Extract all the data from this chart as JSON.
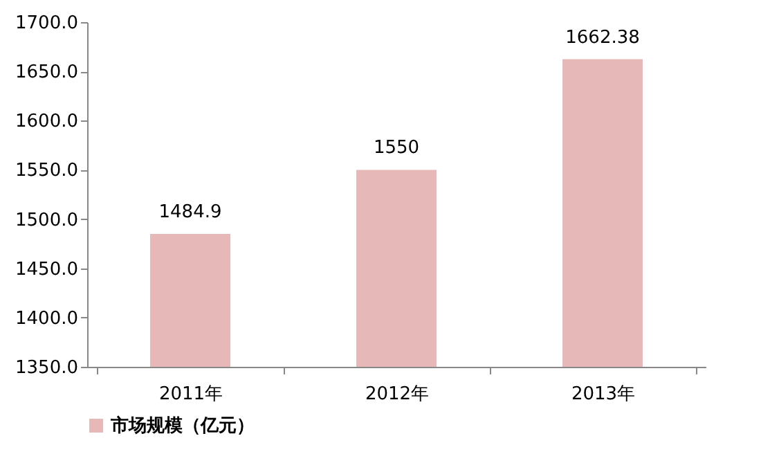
{
  "chart_data": {
    "type": "bar",
    "categories": [
      "2011年",
      "2012年",
      "2013年"
    ],
    "series": [
      {
        "name": "市场规模（亿元）",
        "color": "#e6b8b7",
        "values": [
          1484.9,
          1550,
          1662.38
        ]
      }
    ],
    "ylim": [
      1350,
      1700
    ],
    "yticks": [
      {
        "value": 1350,
        "label": "1350.0"
      },
      {
        "value": 1400,
        "label": "1400.0"
      },
      {
        "value": 1450,
        "label": "1450.0"
      },
      {
        "value": 1500,
        "label": "1500.0"
      },
      {
        "value": 1550,
        "label": "1550.0"
      },
      {
        "value": 1600,
        "label": "1600.0"
      },
      {
        "value": 1650,
        "label": "1650.0"
      },
      {
        "value": 1700,
        "label": "1700.0"
      }
    ],
    "data_labels": true,
    "grid": false,
    "legend": "bottom left"
  }
}
